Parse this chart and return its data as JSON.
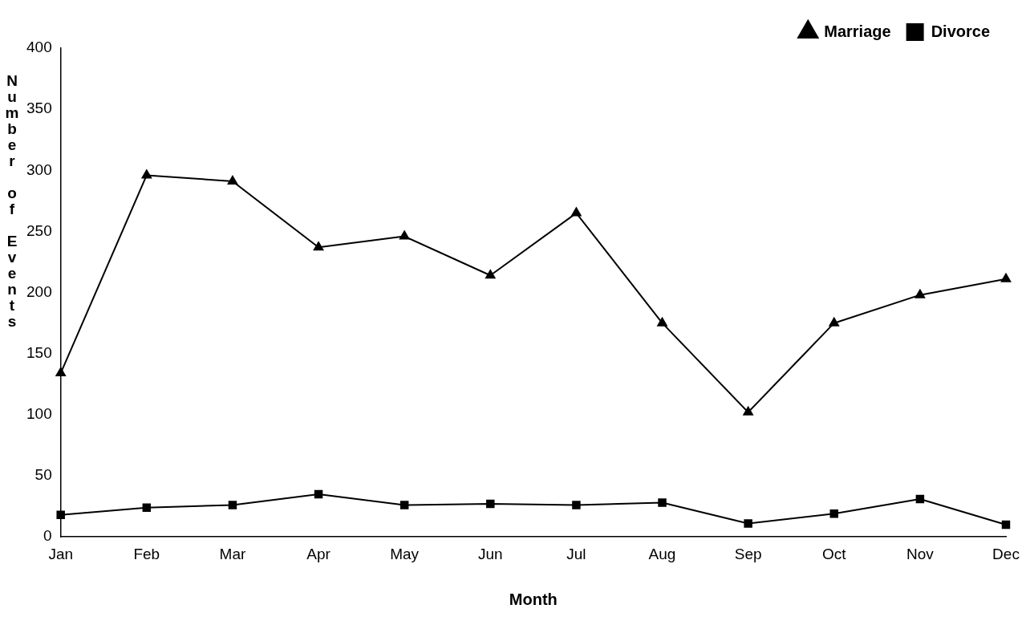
{
  "chart_data": {
    "type": "line",
    "xlabel": "Month",
    "ylabel": "Number of Events",
    "categories": [
      "Jan",
      "Feb",
      "Mar",
      "Apr",
      "May",
      "Jun",
      "Jul",
      "Aug",
      "Sep",
      "Oct",
      "Nov",
      "Dec"
    ],
    "series": [
      {
        "name": "Marriage",
        "color": "#000000",
        "marker": "triangle",
        "values": [
          134,
          296,
          291,
          237,
          246,
          214,
          265,
          175,
          102,
          175,
          198,
          211
        ]
      },
      {
        "name": "Divorce",
        "color": "#000000",
        "marker": "square",
        "values": [
          18,
          24,
          26,
          35,
          26,
          27,
          26,
          28,
          11,
          19,
          31,
          10
        ]
      }
    ],
    "ylim": [
      0,
      400
    ],
    "yticks": [
      0,
      50,
      100,
      150,
      200,
      250,
      300,
      350,
      400
    ],
    "grid": false,
    "legend": "top right",
    "line_style": "solid"
  }
}
